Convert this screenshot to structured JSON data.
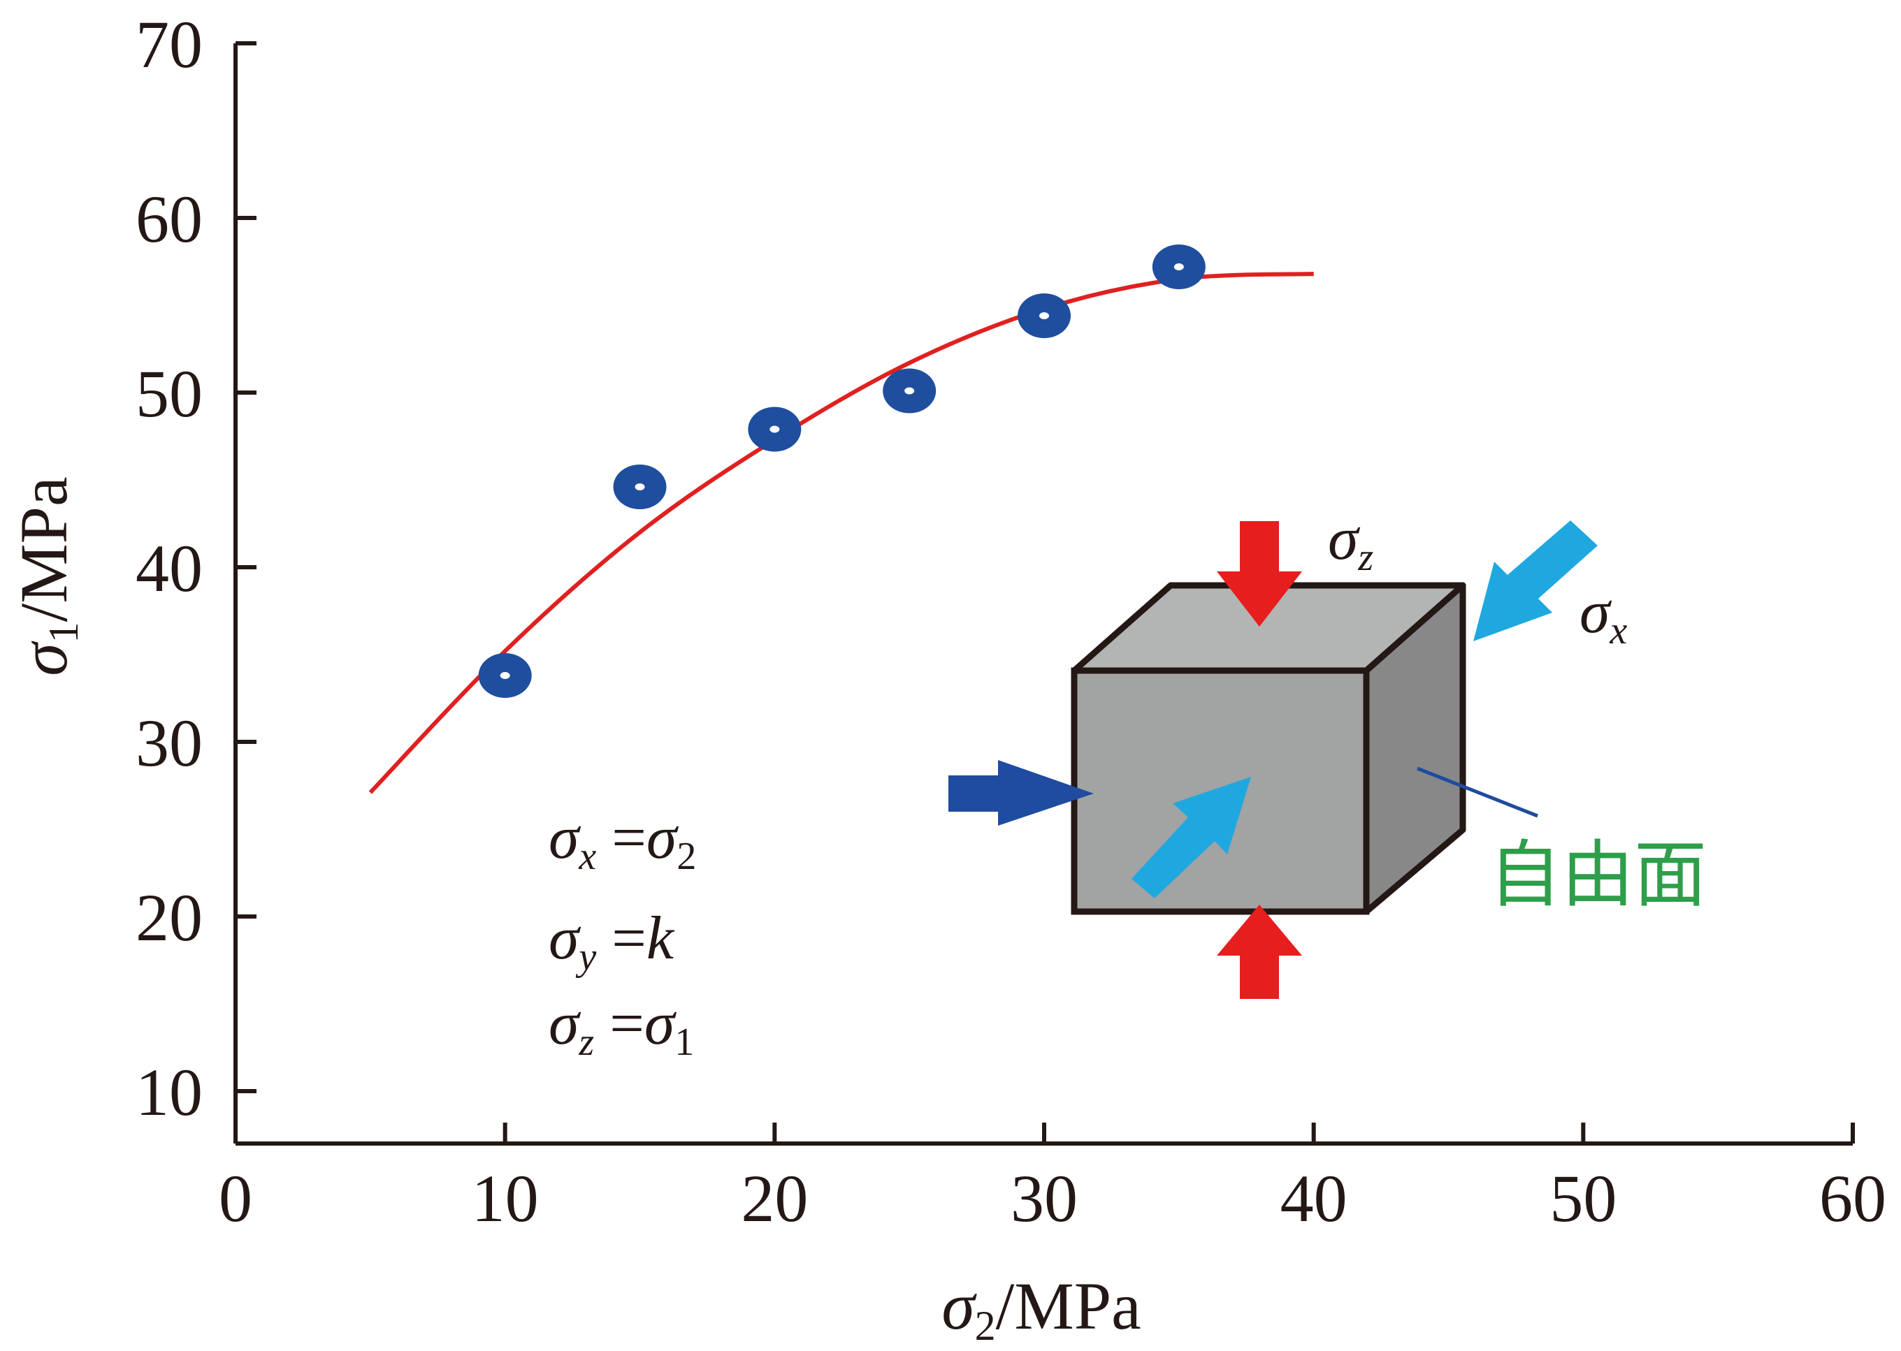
{
  "chart_data": {
    "type": "scatter",
    "xlabel": {
      "symbol": "σ",
      "sub": "2",
      "unit": "/MPa"
    },
    "ylabel": {
      "symbol": "σ",
      "sub": "1",
      "unit": "/MPa"
    },
    "xlim": [
      0,
      60
    ],
    "ylim": [
      7,
      70
    ],
    "x_ticks": [
      0,
      10,
      20,
      30,
      40,
      50,
      60
    ],
    "y_ticks": [
      10,
      20,
      30,
      40,
      50,
      60,
      70
    ],
    "grid": false,
    "series": [
      {
        "kind": "points",
        "color": "#1f4e9e",
        "x": [
          10,
          15,
          20,
          25,
          30,
          35
        ],
        "y": [
          33.8,
          44.6,
          47.9,
          50.1,
          54.4,
          57.2
        ]
      },
      {
        "kind": "fit-curve",
        "color": "#e02020",
        "x": [
          5,
          10,
          15,
          20,
          25,
          30,
          35,
          40
        ],
        "y": [
          27.1,
          35.2,
          42.0,
          47.3,
          51.7,
          54.8,
          56.5,
          56.8
        ]
      }
    ],
    "annotations": {
      "equations": [
        {
          "lhs": "σ",
          "lhs_sub": "x",
          "rhs": "σ",
          "rhs_sub": "2"
        },
        {
          "lhs": "σ",
          "lhs_sub": "y",
          "rhs": "k",
          "rhs_sub": ""
        },
        {
          "lhs": "σ",
          "lhs_sub": "z",
          "rhs": "σ",
          "rhs_sub": "1"
        }
      ],
      "cube_labels": {
        "sigma_z": {
          "symbol": "σ",
          "sub": "z"
        },
        "sigma_x": {
          "symbol": "σ",
          "sub": "x"
        },
        "free_face": "自由面"
      }
    }
  },
  "colors": {
    "axis": "#231815",
    "points": "#1f4e9e",
    "fit_curve": "#e02020",
    "arrow_red": "#e61e1e",
    "arrow_light_blue": "#1fa8e0",
    "arrow_dark_blue": "#1f4ba0",
    "free_face_text": "#2e9e4a",
    "cube_top": "#b3b4b4",
    "cube_front": "#a2a3a3",
    "cube_side": "#888888"
  }
}
